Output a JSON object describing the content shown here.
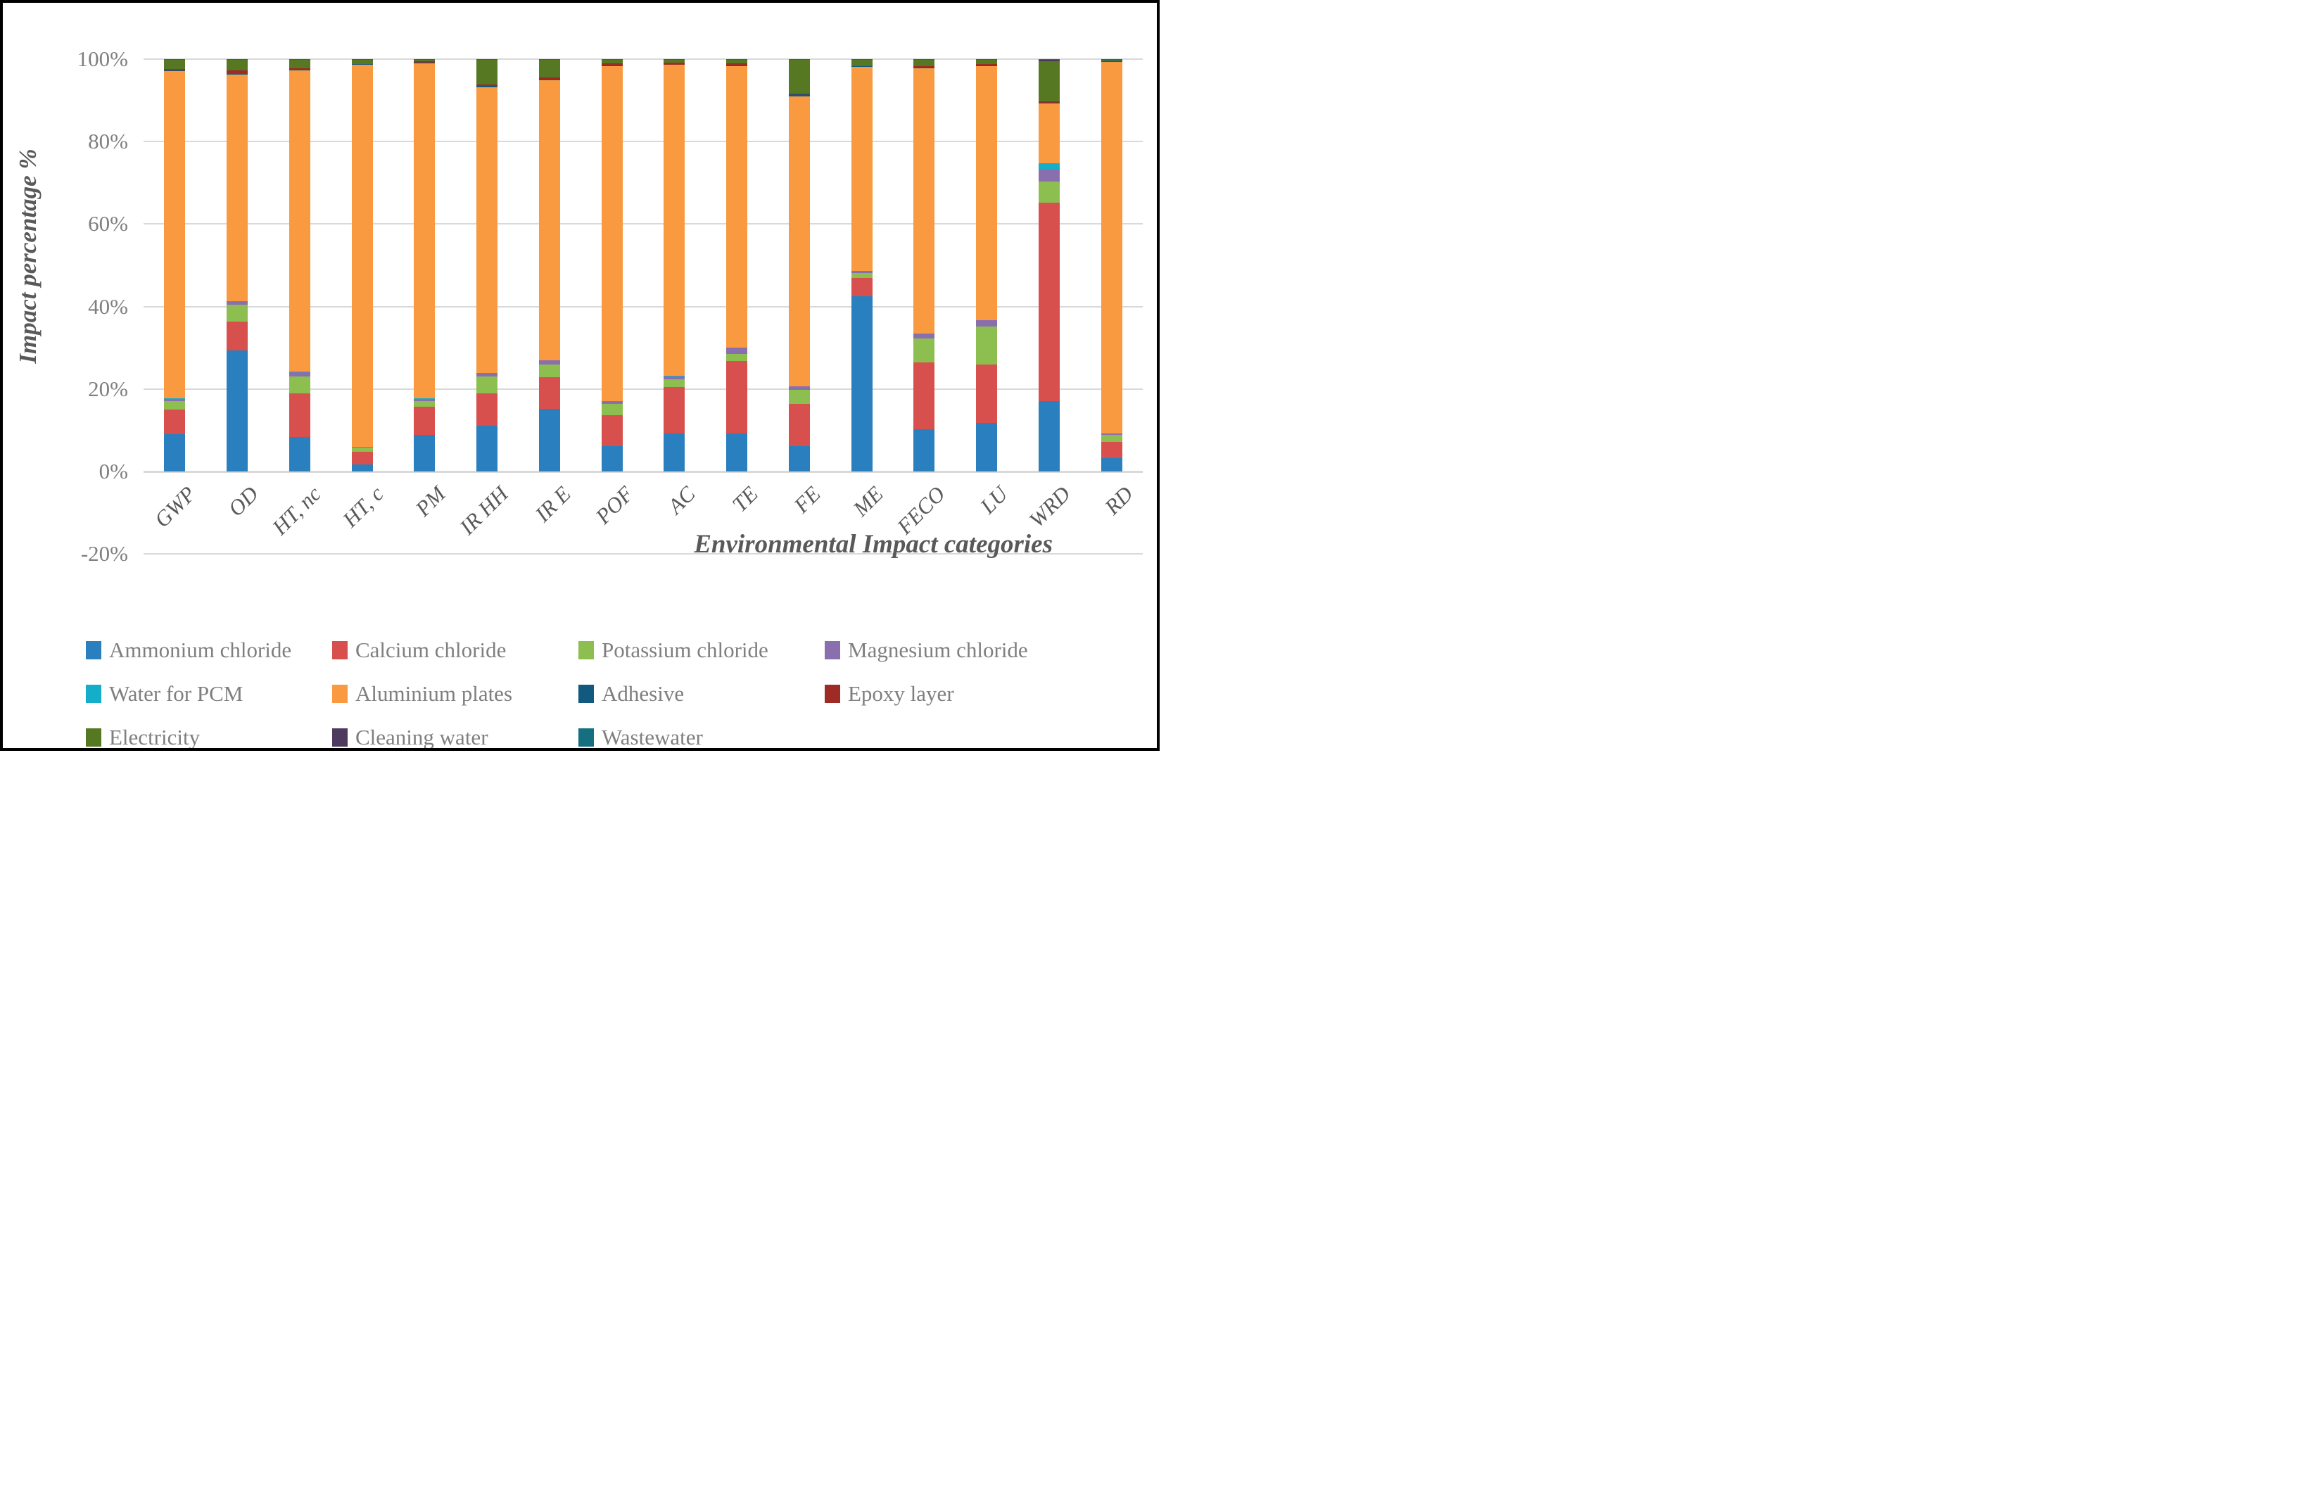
{
  "chart_data": {
    "type": "bar",
    "stacked": true,
    "orientation": "vertical",
    "title": "",
    "xlabel": "Environmental Impact categories",
    "ylabel": "Impact percentage %",
    "ylim": [
      -20,
      100
    ],
    "grid": true,
    "gridline_color": "#d9d9d9",
    "legend_position": "bottom",
    "y_ticks": [
      {
        "value": 100,
        "label": "100%"
      },
      {
        "value": 80,
        "label": "80%"
      },
      {
        "value": 60,
        "label": "60%"
      },
      {
        "value": 40,
        "label": "40%"
      },
      {
        "value": 20,
        "label": "20%"
      },
      {
        "value": 0,
        "label": "0%"
      },
      {
        "value": -20,
        "label": "-20%"
      }
    ],
    "categories": [
      "GWP",
      "OD",
      "HT, nc",
      "HT, c",
      "PM",
      "IR HH",
      "IR E",
      "POF",
      "AC",
      "TE",
      "FE",
      "ME",
      "FECO",
      "LU",
      "WRD",
      "RD"
    ],
    "series": [
      {
        "name": "Ammonium chloride",
        "color": "#2a7fbe",
        "values": [
          9.0,
          29.3,
          8.3,
          1.7,
          8.8,
          11.0,
          15.1,
          6.2,
          9.2,
          9.2,
          6.2,
          42.5,
          10.2,
          11.7,
          17.1,
          3.3
        ]
      },
      {
        "name": "Calcium chloride",
        "color": "#d8504d",
        "values": [
          6.0,
          7.1,
          10.7,
          3.1,
          6.8,
          8.0,
          7.7,
          7.4,
          11.2,
          17.6,
          10.2,
          4.4,
          16.2,
          14.3,
          48.1,
          3.9
        ]
      },
      {
        "name": "Potassium chloride",
        "color": "#8dbf50",
        "values": [
          2.1,
          4.1,
          4.1,
          1.0,
          1.4,
          4.1,
          3.2,
          2.7,
          1.9,
          1.6,
          3.4,
          1.2,
          5.8,
          9.2,
          5.1,
          1.6
        ]
      },
      {
        "name": "Magnesium chloride",
        "color": "#8a6faf",
        "values": [
          0.5,
          0.7,
          1.0,
          0.15,
          0.6,
          0.8,
          0.9,
          0.7,
          0.8,
          1.6,
          0.8,
          0.5,
          1.2,
          1.5,
          2.9,
          0.35
        ]
      },
      {
        "name": "Water for PCM",
        "color": "#14aecb",
        "values": [
          0.05,
          0.05,
          0.05,
          0.05,
          0.05,
          0.05,
          0.05,
          0.05,
          0.05,
          0.1,
          0.05,
          0.05,
          0.05,
          0.05,
          1.5,
          0.05
        ]
      },
      {
        "name": "Aluminium plates",
        "color": "#f99a40",
        "values": [
          79.5,
          54.95,
          73.2,
          92.58,
          81.38,
          69.3,
          68.0,
          81.18,
          75.43,
          68.23,
          70.33,
          49.48,
          64.28,
          61.58,
          14.5,
          90.18
        ]
      },
      {
        "name": "Adhesive",
        "color": "#11597e",
        "values": [
          0.2,
          0.25,
          0.1,
          0.15,
          0.1,
          0.2,
          0.15,
          0.25,
          0.15,
          0.1,
          0.5,
          0.1,
          0.15,
          0.1,
          0.3,
          0.05
        ]
      },
      {
        "name": "Epoxy layer",
        "color": "#9e2b25",
        "values": [
          0.3,
          0.85,
          0.35,
          0.1,
          0.4,
          0.45,
          0.5,
          0.45,
          0.4,
          0.55,
          0.1,
          0.1,
          0.35,
          0.4,
          0.3,
          0.15
        ]
      },
      {
        "name": "Electricity",
        "color": "#567823",
        "values": [
          2.2,
          2.5,
          2.0,
          1.05,
          0.3,
          5.9,
          4.2,
          0.9,
          0.7,
          0.85,
          8.3,
          1.5,
          1.6,
          1.0,
          9.7,
          0.15
        ]
      },
      {
        "name": "Cleaning water",
        "color": "#4f3a5f",
        "values": [
          0.05,
          0.05,
          0.05,
          0.02,
          0.02,
          0.05,
          0.05,
          0.02,
          0.02,
          0.02,
          0.02,
          0.02,
          0.02,
          0.02,
          0.4,
          0.02
        ]
      },
      {
        "name": "Wastewater",
        "color": "#166f80",
        "values": [
          0.1,
          0.15,
          0.15,
          0.1,
          0.15,
          0.15,
          0.15,
          0.15,
          0.15,
          0.15,
          0.1,
          0.15,
          0.15,
          0.15,
          0.1,
          0.25
        ]
      }
    ]
  },
  "style": {
    "tick_text_color": "#7f7f7f",
    "axis_title_color": "#595959",
    "frame_border_color": "#000000"
  }
}
